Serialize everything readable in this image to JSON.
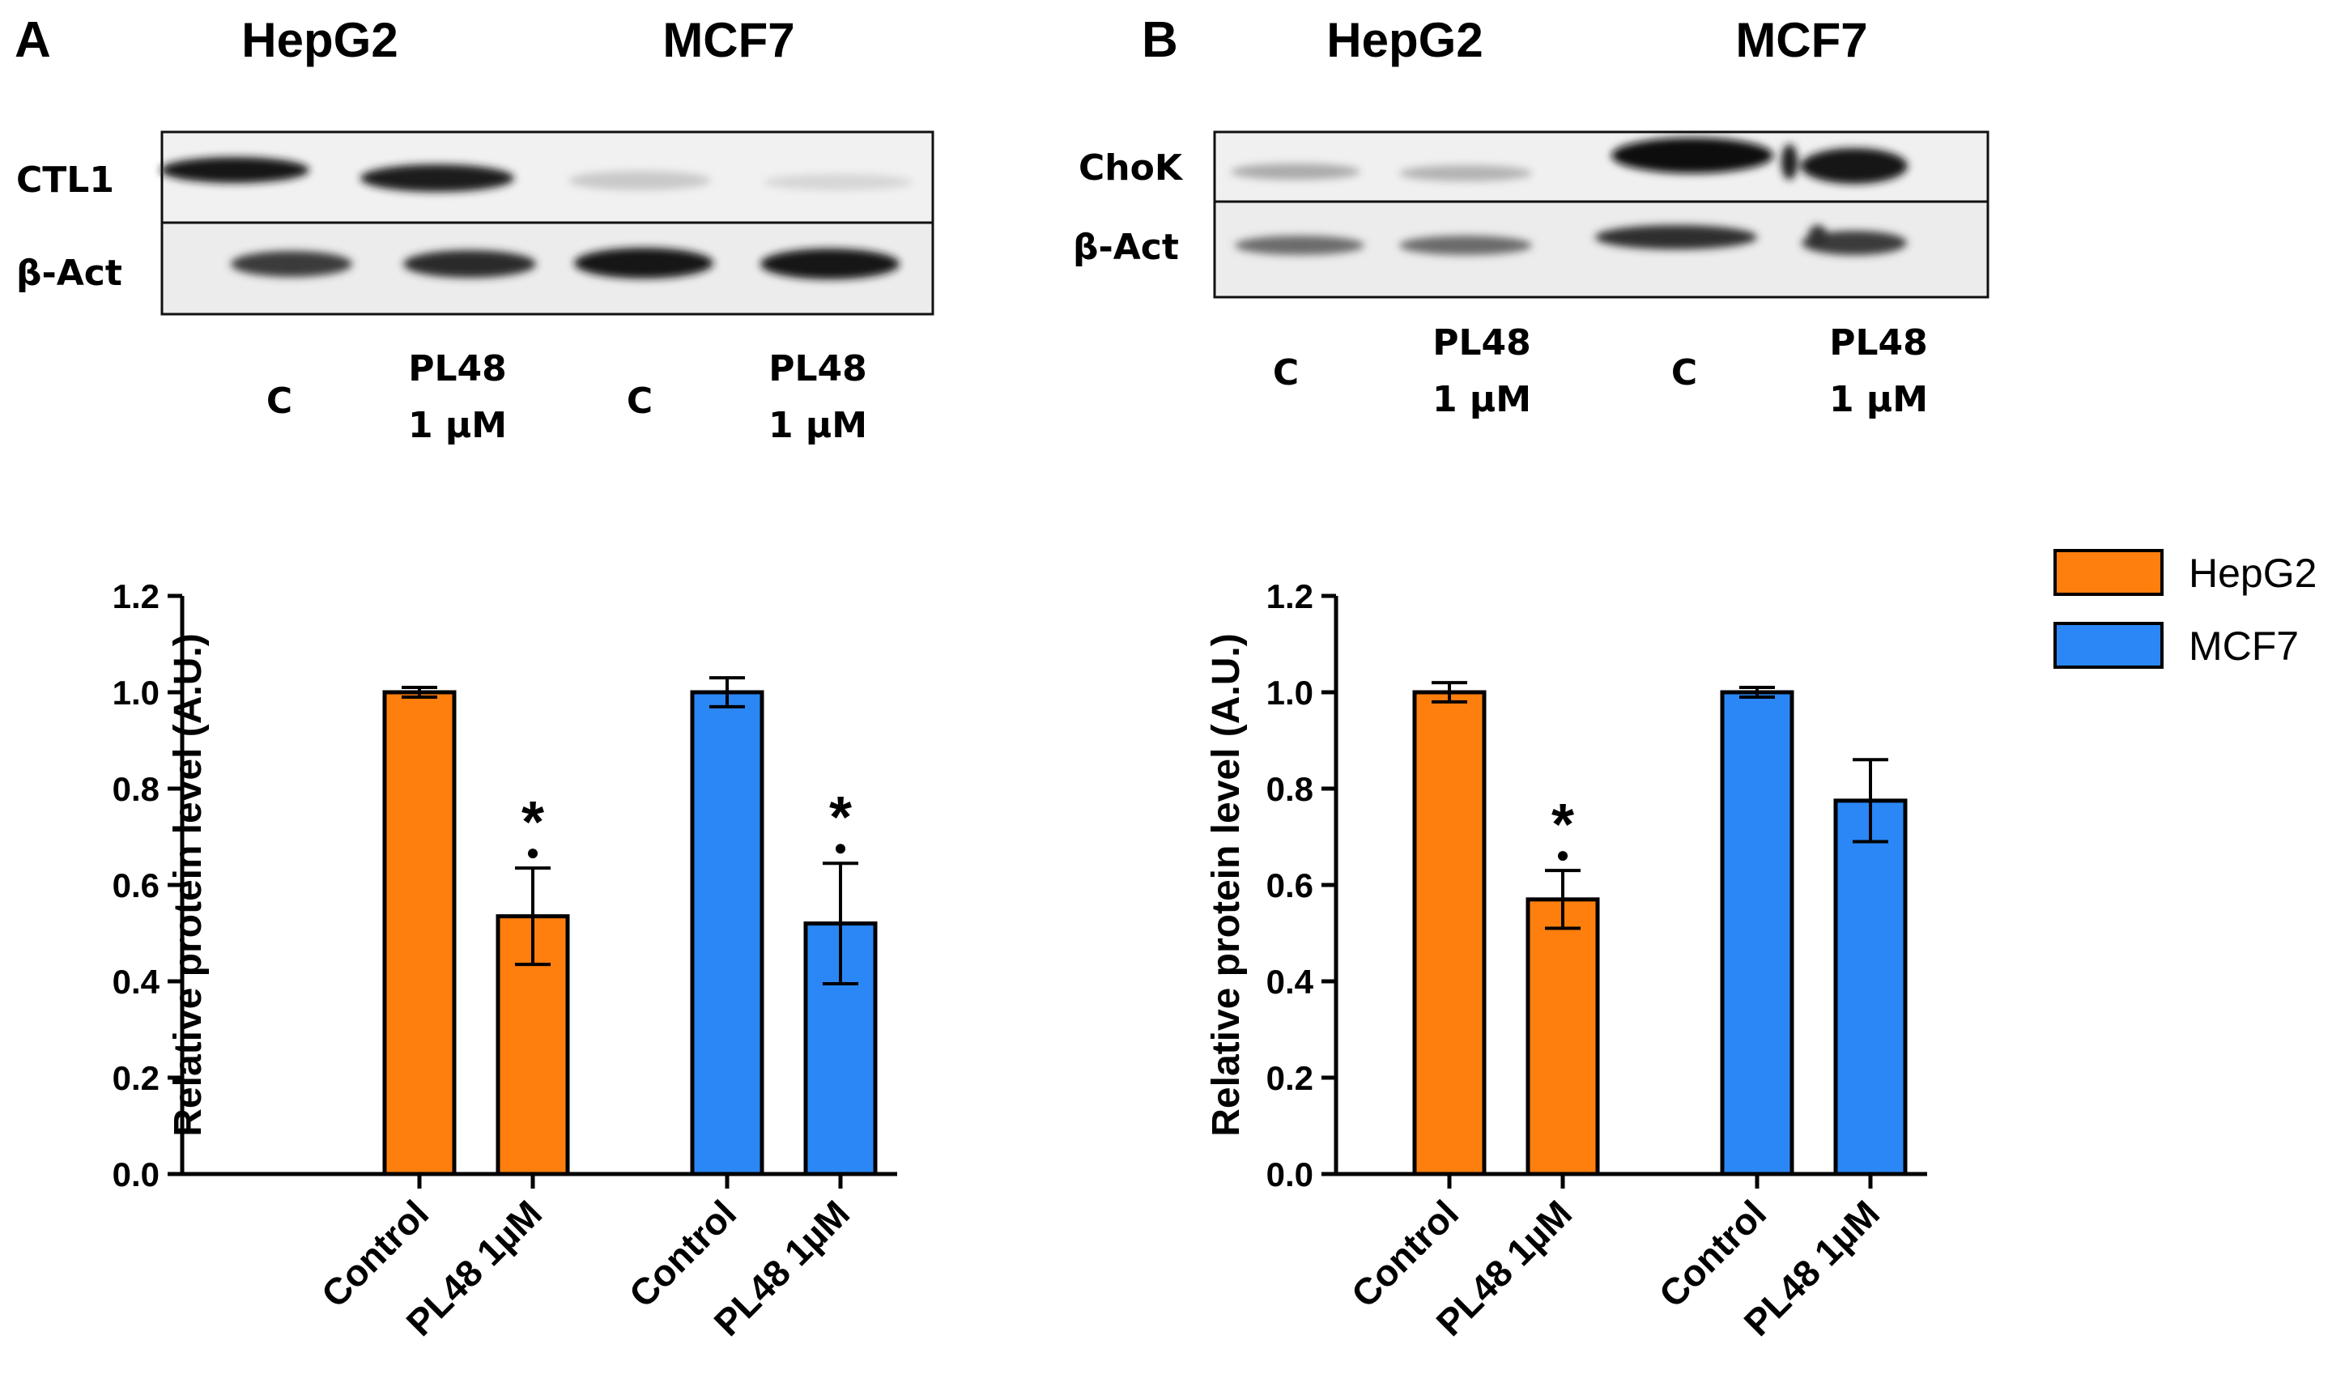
{
  "panels": [
    {
      "letter": "A",
      "blot": {
        "cell_lines": [
          "HepG2",
          "MCF7"
        ],
        "proteins": [
          "CTL1",
          "β-Act"
        ],
        "lanes": [
          {
            "line1": "C",
            "line2": ""
          },
          {
            "line1": "PL48",
            "line2": "1 µM"
          },
          {
            "line1": "C",
            "line2": ""
          },
          {
            "line1": "PL48",
            "line2": "1 µM"
          }
        ]
      }
    },
    {
      "letter": "B",
      "blot": {
        "cell_lines": [
          "HepG2",
          "MCF7"
        ],
        "proteins": [
          "ChoK",
          "β-Act"
        ],
        "lanes": [
          {
            "line1": "C",
            "line2": ""
          },
          {
            "line1": "PL48",
            "line2": "1 µM"
          },
          {
            "line1": "C",
            "line2": ""
          },
          {
            "line1": "PL48",
            "line2": "1 µM"
          }
        ]
      }
    }
  ],
  "legend": [
    {
      "label": "HepG2",
      "color": "#ff7f0e"
    },
    {
      "label": "MCF7",
      "color": "#2b87f5"
    }
  ],
  "chart_data": [
    {
      "type": "bar",
      "panel": "A",
      "title": "",
      "ylabel": "Relative protein level (A.U.)",
      "xlabel": "",
      "ylim": [
        0,
        1.2
      ],
      "yticks": [
        "0.0",
        "0.2",
        "0.4",
        "0.6",
        "0.8",
        "1.0",
        "1.2"
      ],
      "categories": [
        "Control",
        "PL48 1µM",
        "Control",
        "PL48 1µM"
      ],
      "groups": [
        "HepG2",
        "HepG2",
        "MCF7",
        "MCF7"
      ],
      "values": [
        1.0,
        0.535,
        1.0,
        0.52
      ],
      "errors": [
        0.01,
        0.1,
        0.03,
        0.125
      ],
      "significance": [
        "",
        "*",
        "",
        "*"
      ]
    },
    {
      "type": "bar",
      "panel": "B",
      "title": "",
      "ylabel": "Relative protein level (A.U.)",
      "xlabel": "",
      "ylim": [
        0,
        1.2
      ],
      "yticks": [
        "0.0",
        "0.2",
        "0.4",
        "0.6",
        "0.8",
        "1.0",
        "1.2"
      ],
      "categories": [
        "Control",
        "PL48 1µM",
        "Control",
        "PL48 1µM"
      ],
      "groups": [
        "HepG2",
        "HepG2",
        "MCF7",
        "MCF7"
      ],
      "values": [
        1.0,
        0.57,
        1.0,
        0.775
      ],
      "errors": [
        0.02,
        0.06,
        0.01,
        0.085
      ],
      "significance": [
        "",
        "*",
        "",
        ""
      ]
    }
  ]
}
